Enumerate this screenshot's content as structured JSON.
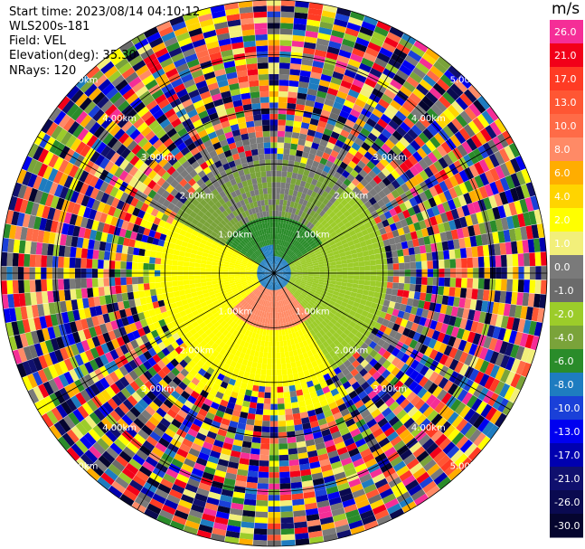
{
  "header": {
    "start_time": "Start time: 2023/08/14 04:10:12",
    "instrument": "WLS200s-181",
    "field": "Field: VEL",
    "elevation": "Elevation(deg): 35.30",
    "nrays": "NRays: 120"
  },
  "colorbar": {
    "unit": "m/s",
    "levels": [
      {
        "label": "26.0",
        "color": "#f52e97"
      },
      {
        "label": "21.0",
        "color": "#f20019"
      },
      {
        "label": "17.0",
        "color": "#ff3b24"
      },
      {
        "label": "13.0",
        "color": "#ff5633"
      },
      {
        "label": "10.0",
        "color": "#ff6b47"
      },
      {
        "label": "8.0",
        "color": "#ff8a66"
      },
      {
        "label": "6.0",
        "color": "#ffad00"
      },
      {
        "label": "4.0",
        "color": "#ffd400"
      },
      {
        "label": "2.0",
        "color": "#ffff00"
      },
      {
        "label": "1.0",
        "color": "#f2ef7a"
      },
      {
        "label": "0.0",
        "color": "#7a7a7a"
      },
      {
        "label": "-1.0",
        "color": "#6b6b6b"
      },
      {
        "label": "-2.0",
        "color": "#9ccc2a"
      },
      {
        "label": "-4.0",
        "color": "#7aa33a"
      },
      {
        "label": "-6.0",
        "color": "#2a8c2a"
      },
      {
        "label": "-8.0",
        "color": "#1e7cc0"
      },
      {
        "label": "-10.0",
        "color": "#1a40d8"
      },
      {
        "label": "-13.0",
        "color": "#0000f0"
      },
      {
        "label": "-17.0",
        "color": "#0000b0"
      },
      {
        "label": "-21.0",
        "color": "#10106e"
      },
      {
        "label": "-26.0",
        "color": "#0a0a50"
      },
      {
        "label": "-30.0",
        "color": "#05052e"
      }
    ]
  },
  "range_labels": [
    "1.00km",
    "2.00km",
    "3.00km",
    "4.00km",
    "5.00km"
  ],
  "chart_data": {
    "type": "heatmap",
    "projection": "polar PPI",
    "field": "VEL",
    "unit": "m/s",
    "elevation_deg": 35.3,
    "nrays": 120,
    "range_rings_km": [
      1,
      2,
      3,
      4,
      5
    ],
    "max_range_km": 5,
    "azimuth_spokes_deg": [
      0,
      30,
      60,
      90,
      120,
      150,
      180,
      210,
      240,
      270,
      300,
      330
    ],
    "colorbar_ticks": [
      26.0,
      21.0,
      17.0,
      13.0,
      10.0,
      8.0,
      6.0,
      4.0,
      2.0,
      1.0,
      0.0,
      -1.0,
      -2.0,
      -4.0,
      -6.0,
      -8.0,
      -10.0,
      -13.0,
      -17.0,
      -21.0,
      -26.0,
      -30.0
    ],
    "dominant_regions": [
      {
        "sector": "west-southwest near range",
        "value_ms": 2.0
      },
      {
        "sector": "south-southwest near center",
        "value_ms": 8.0
      },
      {
        "sector": "north near center",
        "value_ms": -6.0
      },
      {
        "sector": "center north",
        "value_ms": -8.0
      },
      {
        "sector": "east near range",
        "value_ms": -2.0
      },
      {
        "sector": "north 2-3 km",
        "value_ms": 0.0
      },
      {
        "sector": "outer ranges beyond ~2.5 km",
        "value_ms": null,
        "note": "noise / mixed colors"
      }
    ]
  }
}
